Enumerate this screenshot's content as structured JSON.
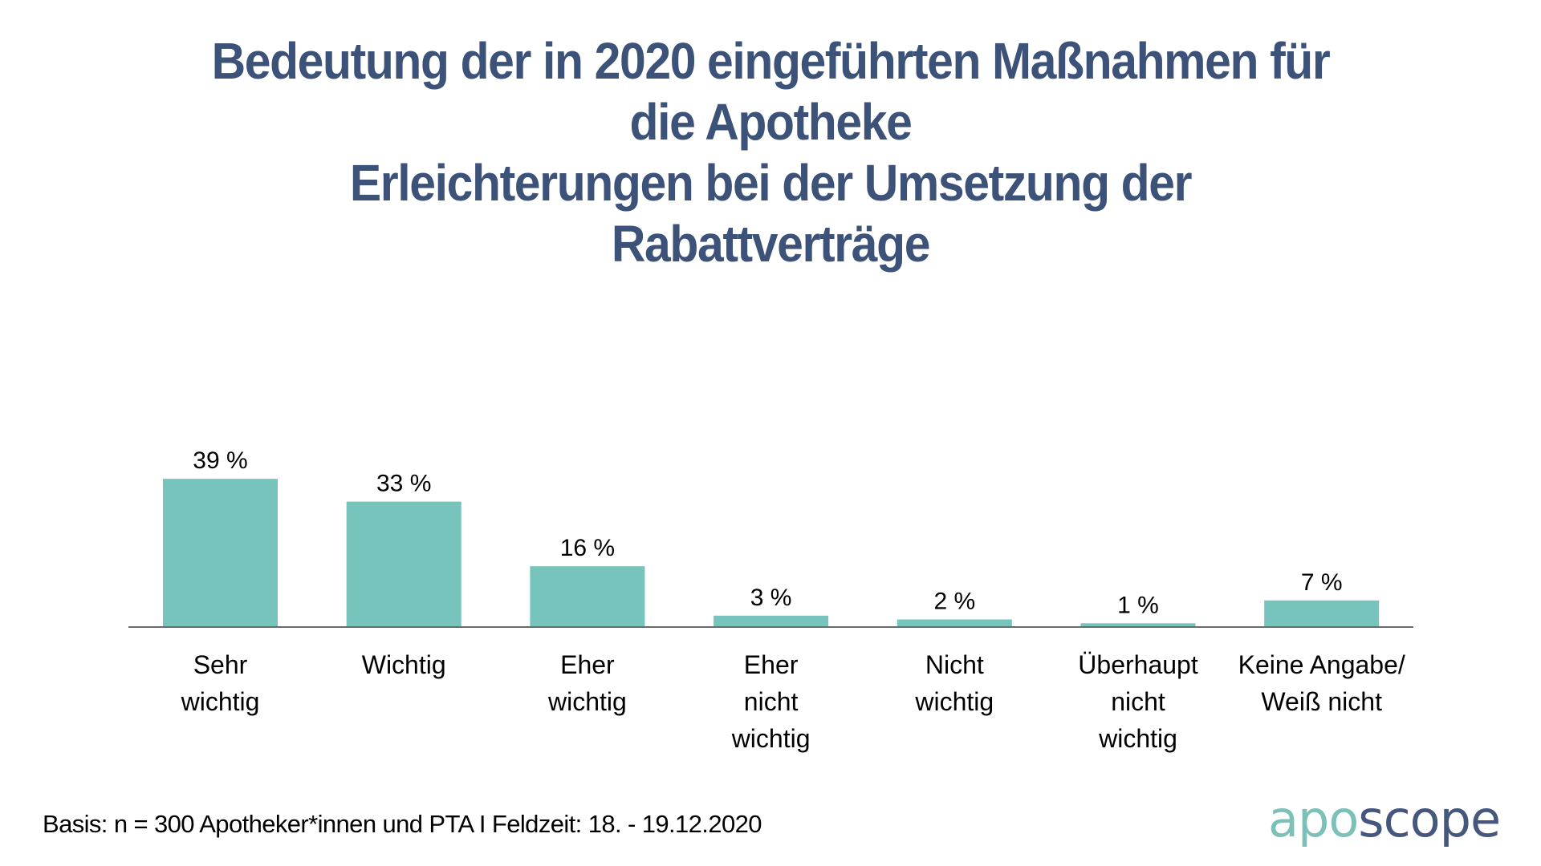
{
  "title": {
    "lines": [
      "Bedeutung der in 2020 eingeführten Maßnahmen für",
      "die Apotheke",
      "Erleichterungen bei der Umsetzung der",
      "Rabattverträge"
    ],
    "color": "#3d5278"
  },
  "chart_data": {
    "type": "bar",
    "title": "Bedeutung der in 2020 eingeführten Maßnahmen für die Apotheke Erleichterungen bei der Umsetzung der Rabattverträge",
    "xlabel": "",
    "ylabel": "",
    "ylim": [
      0,
      39
    ],
    "grid": false,
    "legend": "none",
    "bar_color": "#76c4bb",
    "axis_color": "#6b6b6b",
    "categories": [
      [
        "Sehr",
        "wichtig"
      ],
      [
        "Wichtig"
      ],
      [
        "Eher",
        "wichtig"
      ],
      [
        "Eher",
        "nicht",
        "wichtig"
      ],
      [
        "Nicht",
        "wichtig"
      ],
      [
        "Überhaupt",
        "nicht",
        "wichtig"
      ],
      [
        "Keine Angabe/",
        "Weiß nicht"
      ]
    ],
    "values": [
      39,
      33,
      16,
      3,
      2,
      1,
      7
    ],
    "value_labels": [
      "39 %",
      "33 %",
      "16 %",
      "3 %",
      "2 %",
      "1 %",
      "7 %"
    ]
  },
  "footnote": "Basis: n = 300 Apotheker*innen und PTA I Feldzeit: 18. - 19.12.2020",
  "logo": {
    "part1": "apo",
    "part2": "scope",
    "color1": "#7bc1b8",
    "color2": "#45577c"
  }
}
